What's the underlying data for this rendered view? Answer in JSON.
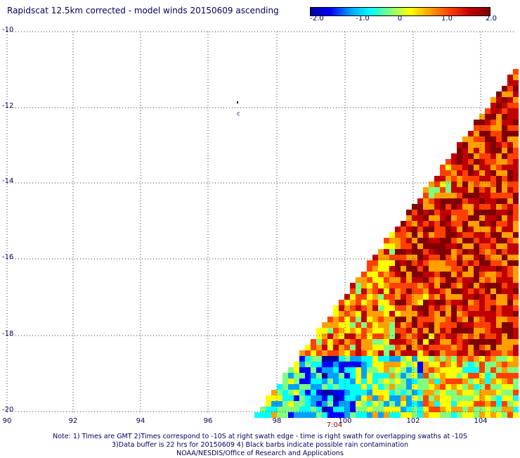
{
  "title": "Rapidscat 12.5km corrected - model winds 20150609 ascending",
  "colorbar": {
    "ticks": [
      "-2.0",
      "-1.0",
      "0",
      "1.0",
      "2.0"
    ],
    "range": [
      -2.0,
      2.0
    ],
    "colors": [
      "#0000a0",
      "#0000ff",
      "#00a0ff",
      "#00ffff",
      "#80ff80",
      "#ffff00",
      "#ffa000",
      "#ff4000",
      "#c00000",
      "#800000"
    ]
  },
  "map": {
    "lon_range": [
      90,
      105
    ],
    "lat_range": [
      -20,
      -10
    ],
    "lon_ticks": [
      "90",
      "92",
      "94",
      "96",
      "98",
      "100",
      "102",
      "104"
    ],
    "lat_ticks": [
      "-10",
      "-12",
      "-14",
      "-16",
      "-18",
      "-20"
    ],
    "swath_time_label": "7:04",
    "swath_time_lon": 99.5
  },
  "notes": [
    "Note: 1) Times are GMT 2)Times correspond to -10S at right swath edge - time is right swath for overlapping swaths at -10S",
    "3)Data buffer is 22 hrs for 20150609 4) Black barbs indicate possible rain contamination",
    "NOAA/NESDIS/Office of Research and Applications"
  ]
}
